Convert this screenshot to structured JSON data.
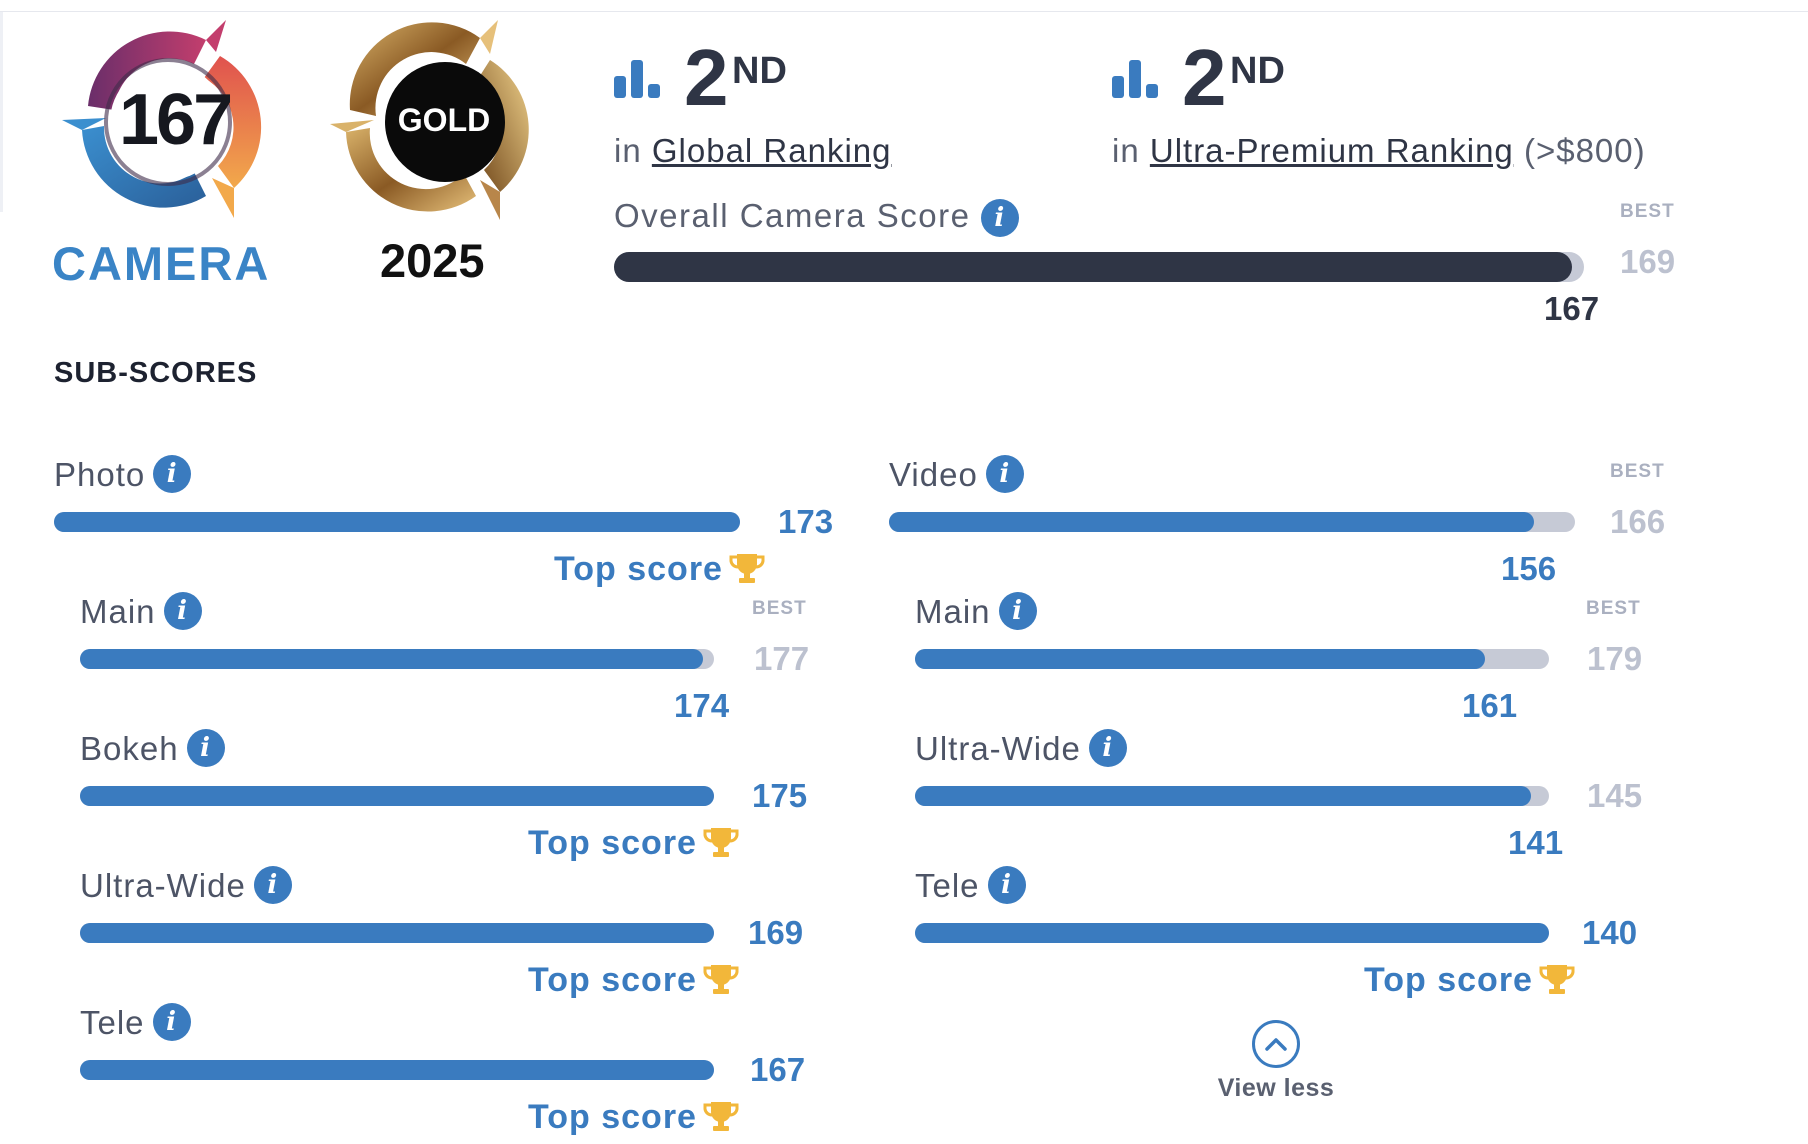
{
  "badges": {
    "camera": {
      "score": "167",
      "label": "CAMERA"
    },
    "gold": {
      "text": "GOLD",
      "year": "2025"
    }
  },
  "rankings": [
    {
      "position": "2",
      "suffix": "ND",
      "prefix": "in",
      "link_text": "Global Ranking",
      "extra": ""
    },
    {
      "position": "2",
      "suffix": "ND",
      "prefix": "in",
      "link_text": "Ultra-Premium Ranking",
      "extra": "(>$800)"
    }
  ],
  "overall": {
    "label": "Overall Camera Score",
    "best_label": "BEST",
    "best": "169",
    "score": "167",
    "fill_fraction": 0.988
  },
  "subscores": {
    "title": "SUB-SCORES",
    "photo": {
      "label": "Photo",
      "score": "173",
      "top_score_label": "Top score",
      "fill_fraction": 1.0,
      "items": [
        {
          "label": "Main",
          "best_label": "BEST",
          "best": "177",
          "score": "174",
          "fill_fraction": 0.983
        },
        {
          "label": "Bokeh",
          "score": "175",
          "top_score_label": "Top score",
          "fill_fraction": 1.0
        },
        {
          "label": "Ultra-Wide",
          "score": "169",
          "top_score_label": "Top score",
          "fill_fraction": 1.0
        },
        {
          "label": "Tele",
          "score": "167",
          "top_score_label": "Top score",
          "fill_fraction": 1.0
        }
      ]
    },
    "video": {
      "label": "Video",
      "best_label": "BEST",
      "best": "166",
      "score": "156",
      "fill_fraction": 0.94,
      "items": [
        {
          "label": "Main",
          "best_label": "BEST",
          "best": "179",
          "score": "161",
          "fill_fraction": 0.899
        },
        {
          "label": "Ultra-Wide",
          "best": "145",
          "score": "141",
          "fill_fraction": 0.972
        },
        {
          "label": "Tele",
          "score": "140",
          "top_score_label": "Top score",
          "fill_fraction": 1.0
        }
      ]
    }
  },
  "view_less": "View less",
  "colors": {
    "accent": "#3a7bbf",
    "overall_bar": "#2f3545",
    "track": "#c6cad6",
    "trophy": "#f2b73a"
  },
  "icons": [
    "info-icon",
    "ranking-bars-icon",
    "trophy-icon",
    "chevron-up-icon"
  ]
}
